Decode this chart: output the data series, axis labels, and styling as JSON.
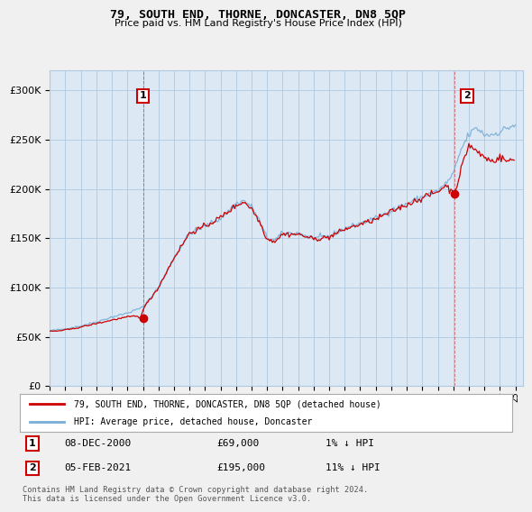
{
  "title": "79, SOUTH END, THORNE, DONCASTER, DN8 5QP",
  "subtitle": "Price paid vs. HM Land Registry's House Price Index (HPI)",
  "background_color": "#f0f0f0",
  "plot_bg_color": "#dce9f5",
  "grid_color": "#b0c8e0",
  "ylim": [
    0,
    320000
  ],
  "yticks": [
    0,
    50000,
    100000,
    150000,
    200000,
    250000,
    300000
  ],
  "hpi_color": "#7aaed6",
  "price_color": "#cc0000",
  "marker1_year": 2001.0,
  "marker1_value": 69000,
  "marker1_label": "1",
  "marker1_date": "08-DEC-2000",
  "marker1_price": "£69,000",
  "marker1_hpi": "1% ↓ HPI",
  "marker2_year": 2021.08,
  "marker2_value": 195000,
  "marker2_label": "2",
  "marker2_date": "05-FEB-2021",
  "marker2_price": "£195,000",
  "marker2_hpi": "11% ↓ HPI",
  "legend_line1": "79, SOUTH END, THORNE, DONCASTER, DN8 5QP (detached house)",
  "legend_line2": "HPI: Average price, detached house, Doncaster",
  "footer": "Contains HM Land Registry data © Crown copyright and database right 2024.\nThis data is licensed under the Open Government Licence v3.0."
}
